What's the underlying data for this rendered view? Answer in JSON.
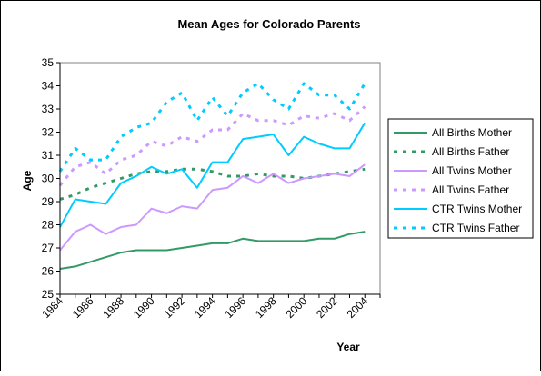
{
  "chart_data": {
    "type": "line",
    "title": "Mean Ages for Colorado Parents",
    "xlabel": "Year",
    "ylabel": "Age",
    "xlim": [
      1984,
      2005
    ],
    "ylim": [
      25,
      35
    ],
    "x_ticks": [
      "1984",
      "1986",
      "1988",
      "1990",
      "1992",
      "1994",
      "1996",
      "1998",
      "2000",
      "2002",
      "2004"
    ],
    "y_ticks": [
      "25",
      "26",
      "27",
      "28",
      "29",
      "30",
      "31",
      "32",
      "33",
      "34",
      "35"
    ],
    "grid": false,
    "legend_position": "right",
    "x": [
      1984,
      1985,
      1986,
      1987,
      1988,
      1989,
      1990,
      1991,
      1992,
      1993,
      1994,
      1995,
      1996,
      1997,
      1998,
      1999,
      2000,
      2001,
      2002,
      2003,
      2004
    ],
    "series": [
      {
        "name": "All Births Mother",
        "color": "#339966",
        "dash": "solid",
        "values": [
          26.1,
          26.2,
          26.4,
          26.6,
          26.8,
          26.9,
          26.9,
          26.9,
          27.0,
          27.1,
          27.2,
          27.2,
          27.4,
          27.3,
          27.3,
          27.3,
          27.3,
          27.4,
          27.4,
          27.6,
          27.7
        ]
      },
      {
        "name": "All Births Father",
        "color": "#339966",
        "dash": "dashed",
        "values": [
          29.1,
          29.3,
          29.6,
          29.8,
          30.0,
          30.2,
          30.3,
          30.3,
          30.4,
          30.4,
          30.3,
          30.1,
          30.1,
          30.2,
          30.1,
          30.1,
          30.0,
          30.1,
          30.2,
          30.3,
          30.4
        ]
      },
      {
        "name": "All Twins Mother",
        "color": "#cc99ff",
        "dash": "solid",
        "values": [
          26.9,
          27.7,
          28.0,
          27.6,
          27.9,
          28.0,
          28.7,
          28.5,
          28.8,
          28.7,
          29.5,
          29.6,
          30.1,
          29.8,
          30.2,
          29.8,
          30.0,
          30.1,
          30.2,
          30.1,
          30.6
        ]
      },
      {
        "name": "All Twins Father",
        "color": "#cc99ff",
        "dash": "dashed",
        "values": [
          29.7,
          30.5,
          30.7,
          30.2,
          30.8,
          31.0,
          31.6,
          31.4,
          31.8,
          31.6,
          32.1,
          32.1,
          32.8,
          32.5,
          32.5,
          32.3,
          32.7,
          32.6,
          32.8,
          32.5,
          33.1
        ]
      },
      {
        "name": "CTR Twins Mother",
        "color": "#00ccff",
        "dash": "solid",
        "values": [
          27.9,
          29.1,
          29.0,
          28.9,
          29.8,
          30.1,
          30.5,
          30.2,
          30.4,
          29.6,
          30.7,
          30.7,
          31.7,
          31.8,
          31.9,
          31.0,
          31.8,
          31.5,
          31.3,
          31.3,
          32.4
        ]
      },
      {
        "name": "CTR Twins Father",
        "color": "#00ccff",
        "dash": "dashed",
        "values": [
          30.3,
          31.3,
          30.8,
          30.8,
          31.8,
          32.2,
          32.4,
          33.3,
          33.7,
          32.5,
          33.5,
          32.7,
          33.7,
          34.1,
          33.4,
          33.0,
          34.1,
          33.6,
          33.6,
          33.0,
          34.1
        ]
      }
    ]
  }
}
